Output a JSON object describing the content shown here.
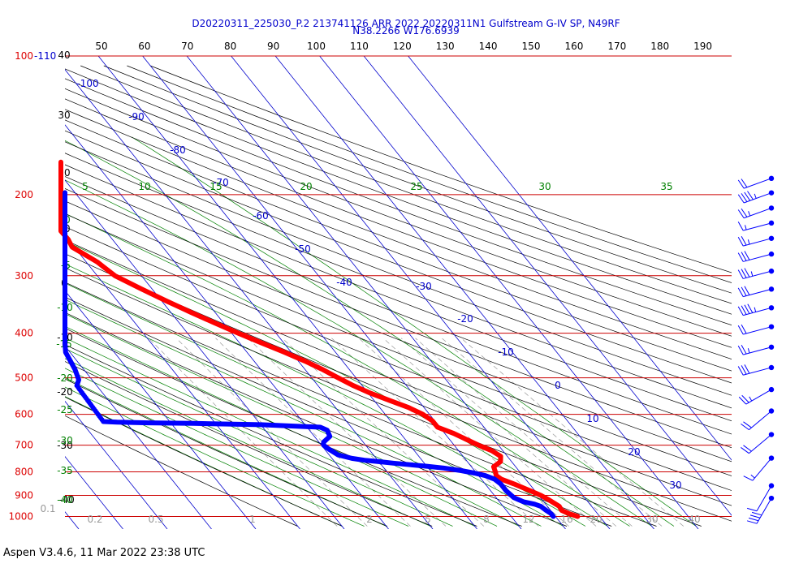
{
  "header": {
    "line1": "D20220311_225030_P.2 213741126 ARR 2022  20220311N1 Gulfstream G-IV SP, N49RF",
    "line2": "N38.2266 W176.6939"
  },
  "footer": {
    "text": "Aspen V3.4.6, 11 Mar 2022  23:38 UTC"
  },
  "colors": {
    "temperature": "#ff0000",
    "dewpoint": "#0000ff",
    "isobar": "#cc0000",
    "isotherm": "#0000cc",
    "dry_adiabat": "#000000",
    "moist_adiabat": "#008000",
    "mixing_ratio": "#999999"
  },
  "chart_data": {
    "type": "skew-t log-p",
    "pressure_levels": [
      {
        "p": 1000,
        "label": "1000"
      },
      {
        "p": 900,
        "label": "900"
      },
      {
        "p": 800,
        "label": "800"
      },
      {
        "p": 700,
        "label": "700"
      },
      {
        "p": 600,
        "label": "600"
      },
      {
        "p": 500,
        "label": "500"
      },
      {
        "p": 400,
        "label": "400"
      },
      {
        "p": 300,
        "label": "300"
      },
      {
        "p": 200,
        "label": "200"
      },
      {
        "p": 100,
        "label": "100"
      }
    ],
    "top_pressure_label": "-110",
    "theta_scale_labels": [
      {
        "v": 50,
        "label": "50"
      },
      {
        "v": 60,
        "label": "60"
      },
      {
        "v": 70,
        "label": "70"
      },
      {
        "v": 80,
        "label": "80"
      },
      {
        "v": 90,
        "label": "90"
      },
      {
        "v": 100,
        "label": "100"
      },
      {
        "v": 110,
        "label": "110"
      },
      {
        "v": 120,
        "label": "120"
      },
      {
        "v": 130,
        "label": "130"
      },
      {
        "v": 140,
        "label": "140"
      },
      {
        "v": 150,
        "label": "150"
      },
      {
        "v": 160,
        "label": "160"
      },
      {
        "v": 170,
        "label": "170"
      },
      {
        "v": 180,
        "label": "180"
      },
      {
        "v": 190,
        "label": "190"
      }
    ],
    "isotherm_labels": [
      {
        "t": -100,
        "label": "-100"
      },
      {
        "t": -90,
        "label": "-90"
      },
      {
        "t": -80,
        "label": "-80"
      },
      {
        "t": -70,
        "label": "-70"
      },
      {
        "t": -60,
        "label": "-60"
      },
      {
        "t": -50,
        "label": "-50"
      },
      {
        "t": -40,
        "label": "-40"
      },
      {
        "t": -30,
        "label": "-30"
      },
      {
        "t": -20,
        "label": "-20"
      },
      {
        "t": -10,
        "label": "-10"
      },
      {
        "t": 0,
        "label": "0"
      },
      {
        "t": 10,
        "label": "10"
      },
      {
        "t": 20,
        "label": "20"
      },
      {
        "t": 30,
        "label": "30"
      }
    ],
    "height_labels": [
      {
        "label": "40"
      },
      {
        "label": "30"
      },
      {
        "label": "20"
      },
      {
        "label": "10"
      },
      {
        "label": "0"
      },
      {
        "label": "-10"
      },
      {
        "label": "-20"
      },
      {
        "label": "-30"
      },
      {
        "label": "-40"
      }
    ],
    "moist_left_labels": [
      {
        "label": "0"
      },
      {
        "label": "-5"
      },
      {
        "label": "-10"
      },
      {
        "label": "-15"
      },
      {
        "label": "-20"
      },
      {
        "label": "-25"
      },
      {
        "label": "-30"
      },
      {
        "label": "-35"
      },
      {
        "label": "-40"
      }
    ],
    "moist_top_labels": [
      {
        "label": "5"
      },
      {
        "label": "10"
      },
      {
        "label": "15"
      },
      {
        "label": "20"
      },
      {
        "label": "25"
      },
      {
        "label": "30"
      },
      {
        "label": "35"
      }
    ],
    "mixing_ratio_labels": [
      {
        "label": "0.1"
      },
      {
        "label": "0.2"
      },
      {
        "label": "0.5"
      },
      {
        "label": "1"
      },
      {
        "label": "2"
      },
      {
        "label": "5"
      },
      {
        "label": "8"
      },
      {
        "label": "12"
      },
      {
        "label": "16"
      },
      {
        "label": "20"
      },
      {
        "label": "30"
      },
      {
        "label": "40"
      }
    ],
    "temperature_profile": [
      {
        "p": 1000,
        "t": 15.0
      },
      {
        "p": 985,
        "t": 13.5
      },
      {
        "p": 970,
        "t": 12.5
      },
      {
        "p": 950,
        "t": 12.7
      },
      {
        "p": 920,
        "t": 11.5
      },
      {
        "p": 900,
        "t": 10.5
      },
      {
        "p": 880,
        "t": 9.0
      },
      {
        "p": 850,
        "t": 6.5
      },
      {
        "p": 830,
        "t": 4.5
      },
      {
        "p": 815,
        "t": 4.0
      },
      {
        "p": 800,
        "t": 4.5
      },
      {
        "p": 780,
        "t": 5.0
      },
      {
        "p": 760,
        "t": 7.5
      },
      {
        "p": 740,
        "t": 8.5
      },
      {
        "p": 720,
        "t": 7.5
      },
      {
        "p": 700,
        "t": 5.5
      },
      {
        "p": 660,
        "t": 2.0
      },
      {
        "p": 640,
        "t": -0.5
      },
      {
        "p": 620,
        "t": -0.5
      },
      {
        "p": 600,
        "t": -1.5
      },
      {
        "p": 580,
        "t": -3.5
      },
      {
        "p": 560,
        "t": -6.5
      },
      {
        "p": 540,
        "t": -9.5
      },
      {
        "p": 520,
        "t": -12.0
      },
      {
        "p": 500,
        "t": -14.0
      },
      {
        "p": 480,
        "t": -16.0
      },
      {
        "p": 460,
        "t": -18.5
      },
      {
        "p": 440,
        "t": -21.5
      },
      {
        "p": 420,
        "t": -25.0
      },
      {
        "p": 400,
        "t": -28.5
      },
      {
        "p": 380,
        "t": -32.0
      },
      {
        "p": 360,
        "t": -35.5
      },
      {
        "p": 340,
        "t": -39.0
      },
      {
        "p": 320,
        "t": -42.5
      },
      {
        "p": 300,
        "t": -46.0
      },
      {
        "p": 280,
        "t": -47.5
      },
      {
        "p": 260,
        "t": -50.5
      },
      {
        "p": 250,
        "t": -50.0
      },
      {
        "p": 240,
        "t": -50.5
      },
      {
        "p": 230,
        "t": -52.5
      },
      {
        "p": 220,
        "t": -53.0
      },
      {
        "p": 210,
        "t": -55.0
      },
      {
        "p": 200,
        "t": -55.5
      },
      {
        "p": 190,
        "t": -57.0
      },
      {
        "p": 180,
        "t": -56.5
      },
      {
        "p": 170,
        "t": -56.0
      }
    ],
    "dewpoint_profile": [
      {
        "p": 1000,
        "t": 9.5
      },
      {
        "p": 985,
        "t": 9.5
      },
      {
        "p": 970,
        "t": 9.0
      },
      {
        "p": 950,
        "t": 8.5
      },
      {
        "p": 940,
        "t": 7.5
      },
      {
        "p": 930,
        "t": 5.5
      },
      {
        "p": 910,
        "t": 4.0
      },
      {
        "p": 880,
        "t": 3.5
      },
      {
        "p": 850,
        "t": 3.5
      },
      {
        "p": 830,
        "t": 3.0
      },
      {
        "p": 815,
        "t": 1.5
      },
      {
        "p": 805,
        "t": -0.5
      },
      {
        "p": 795,
        "t": -3.0
      },
      {
        "p": 785,
        "t": -6.5
      },
      {
        "p": 778,
        "t": -10.0
      },
      {
        "p": 772,
        "t": -13.5
      },
      {
        "p": 766,
        "t": -17.0
      },
      {
        "p": 760,
        "t": -20.0
      },
      {
        "p": 755,
        "t": -23.0
      },
      {
        "p": 748,
        "t": -25.5
      },
      {
        "p": 735,
        "t": -28.0
      },
      {
        "p": 715,
        "t": -29.0
      },
      {
        "p": 700,
        "t": -29.5
      },
      {
        "p": 690,
        "t": -29.0
      },
      {
        "p": 670,
        "t": -26.5
      },
      {
        "p": 650,
        "t": -26.0
      },
      {
        "p": 640,
        "t": -27.0
      },
      {
        "p": 632,
        "t": -40.0
      },
      {
        "p": 628,
        "t": -55.0
      },
      {
        "p": 626,
        "t": -65.0
      },
      {
        "p": 624,
        "t": -72.0
      },
      {
        "p": 622,
        "t": -75.0
      },
      {
        "p": 619,
        "t": -77.0
      },
      {
        "p": 618,
        "t": -79.0
      },
      {
        "p": 545,
        "t": -75.0
      },
      {
        "p": 520,
        "t": -74.5
      },
      {
        "p": 505,
        "t": -73.0
      },
      {
        "p": 480,
        "t": -72.0
      },
      {
        "p": 460,
        "t": -71.5
      },
      {
        "p": 440,
        "t": -71.0
      },
      {
        "p": 420,
        "t": -71.0
      },
      {
        "p": 400,
        "t": -71.5
      },
      {
        "p": 380,
        "t": -71.0
      },
      {
        "p": 360,
        "t": -68.5
      },
      {
        "p": 345,
        "t": -67.5
      },
      {
        "p": 330,
        "t": -70.0
      },
      {
        "p": 315,
        "t": -70.0
      },
      {
        "p": 300,
        "t": -73.5
      },
      {
        "p": 285,
        "t": -74.0
      },
      {
        "p": 270,
        "t": -74.0
      },
      {
        "p": 255,
        "t": -73.5
      },
      {
        "p": 245,
        "t": -73.0
      },
      {
        "p": 235,
        "t": -72.0
      },
      {
        "p": 225,
        "t": -70.5
      },
      {
        "p": 215,
        "t": -69.0
      },
      {
        "p": 205,
        "t": -66.5
      },
      {
        "p": 198,
        "t": -65.0
      }
    ],
    "wind_barbs": [
      {
        "p": 200,
        "dir": 250,
        "speed": 20
      },
      {
        "p": 215,
        "dir": 250,
        "speed": 45
      },
      {
        "p": 232,
        "dir": 250,
        "speed": 25
      },
      {
        "p": 250,
        "dir": 255,
        "speed": 15
      },
      {
        "p": 270,
        "dir": 255,
        "speed": 25
      },
      {
        "p": 292,
        "dir": 255,
        "speed": 30
      },
      {
        "p": 318,
        "dir": 255,
        "speed": 35
      },
      {
        "p": 348,
        "dir": 255,
        "speed": 30
      },
      {
        "p": 382,
        "dir": 255,
        "speed": 45
      },
      {
        "p": 420,
        "dir": 255,
        "speed": 20
      },
      {
        "p": 465,
        "dir": 255,
        "speed": 25
      },
      {
        "p": 515,
        "dir": 255,
        "speed": 30
      },
      {
        "p": 575,
        "dir": 240,
        "speed": 25
      },
      {
        "p": 640,
        "dir": 230,
        "speed": 20
      },
      {
        "p": 720,
        "dir": 230,
        "speed": 20
      },
      {
        "p": 810,
        "dir": 220,
        "speed": 15
      },
      {
        "p": 930,
        "dir": 210,
        "speed": 10
      },
      {
        "p": 990,
        "dir": 210,
        "speed": 40
      }
    ]
  }
}
